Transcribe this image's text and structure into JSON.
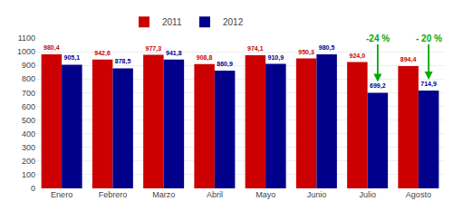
{
  "chart_data": {
    "type": "bar",
    "categories": [
      "Enero",
      "Febrero",
      "Marzo",
      "Abril",
      "Mayo",
      "Junio",
      "Julio",
      "Agosto"
    ],
    "series": [
      {
        "name": "2011",
        "color": "#cc0000",
        "values": [
          980.4,
          942.6,
          977.3,
          908.8,
          974.1,
          950.3,
          924.0,
          894.4
        ],
        "value_labels": [
          "980,4",
          "942,6",
          "977,3",
          "908,8",
          "974,1",
          "950,3",
          "924,0",
          "894,4"
        ]
      },
      {
        "name": "2012",
        "color": "#00008b",
        "values": [
          905.1,
          878.5,
          941.8,
          860.9,
          910.9,
          980.5,
          699.2,
          714.9
        ],
        "value_labels": [
          "905,1",
          "878,5",
          "941,8",
          "860,9",
          "910,9",
          "980,5",
          "699,2",
          "714,9"
        ]
      }
    ],
    "ylim": [
      0,
      1100
    ],
    "yticks": [
      0,
      100,
      200,
      300,
      400,
      500,
      600,
      700,
      800,
      900,
      1000,
      1100
    ],
    "grid": true,
    "legend": "top",
    "data_labels": true,
    "annotations": [
      {
        "text": "-24 %",
        "category": "Julio",
        "series": "2012",
        "color": "#00aa00"
      },
      {
        "text": "- 20 %",
        "category": "Agosto",
        "series": "2012",
        "color": "#00aa00"
      }
    ]
  }
}
